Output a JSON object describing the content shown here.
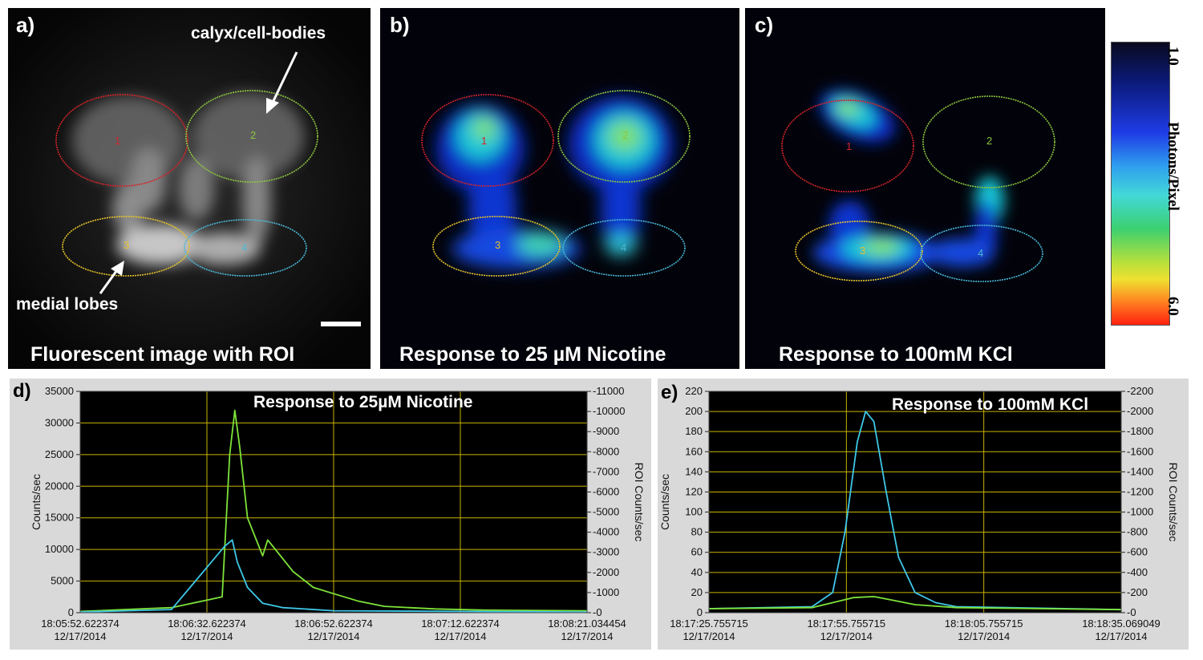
{
  "panels": {
    "a": {
      "label": "a)",
      "caption": "Fluorescent  image with ROI",
      "annotation_top": "calyx/cell-bodies",
      "annotation_bottom": "medial lobes",
      "roi": [
        "1",
        "2",
        "3",
        "4"
      ]
    },
    "b": {
      "label": "b)",
      "caption": "Response  to 25 µM Nicotine",
      "roi": [
        "1",
        "2",
        "3",
        "4"
      ]
    },
    "c": {
      "label": "c)",
      "caption": "Response  to 100mM KCl",
      "roi": [
        "1",
        "2",
        "3",
        "4"
      ]
    }
  },
  "colorbar": {
    "label": "Photons/Pixel",
    "top_tick": "1.0",
    "bottom_tick": "6.0"
  },
  "colors": {
    "roi1": "#d4242a",
    "roi2": "#8cc63f",
    "roi3": "#e6c22a",
    "roi4": "#4ab8d8",
    "trace_green": "#7ee33a",
    "trace_cyan": "#3fc8e8",
    "grid": "#c8b400"
  },
  "chart_data": [
    {
      "type": "line",
      "label": "d)",
      "title": "Response to 25µM Nicotine",
      "ylabel": "Counts/sec",
      "y2label": "ROI Counts/sec",
      "ylim": [
        0,
        35000
      ],
      "y2lim": [
        0,
        11000
      ],
      "yticks": [
        "0",
        "5000",
        "10000",
        "15000",
        "20000",
        "25000",
        "30000",
        "35000"
      ],
      "y2ticks": [
        "0",
        "1000",
        "2000",
        "3000",
        "4000",
        "5000",
        "6000",
        "7000",
        "8000",
        "9000",
        "10000",
        "11000"
      ],
      "xticks": [
        [
          "18:05:52.622374",
          "12/17/2014"
        ],
        [
          "18:06:32.622374",
          "12/17/2014"
        ],
        [
          "18:06:52.622374",
          "12/17/2014"
        ],
        [
          "18:07:12.622374",
          "12/17/2014"
        ],
        [
          "18:08:21.034454",
          "12/17/2014"
        ]
      ],
      "series": [
        {
          "color": "green",
          "x": [
            0,
            0.18,
            0.28,
            0.295,
            0.305,
            0.315,
            0.33,
            0.36,
            0.37,
            0.39,
            0.42,
            0.46,
            0.5,
            0.55,
            0.6,
            0.7,
            0.8,
            1.0
          ],
          "y": [
            200,
            800,
            2500,
            25000,
            32000,
            26000,
            15000,
            9000,
            11500,
            9500,
            6500,
            4000,
            3000,
            1800,
            1000,
            600,
            400,
            300
          ]
        },
        {
          "color": "cyan",
          "x": [
            0,
            0.18,
            0.285,
            0.3,
            0.31,
            0.33,
            0.36,
            0.4,
            0.5,
            1.0
          ],
          "y": [
            100,
            500,
            10500,
            11500,
            8000,
            4000,
            1500,
            800,
            300,
            100
          ]
        }
      ]
    },
    {
      "type": "line",
      "label": "e)",
      "title": "Response to 100mM KCl",
      "ylabel": "Counts/sec",
      "y2label": "ROI Counts/sec",
      "ylim": [
        0,
        220
      ],
      "y2lim": [
        0,
        2200
      ],
      "yticks": [
        "0",
        "20",
        "40",
        "60",
        "80",
        "100",
        "120",
        "140",
        "160",
        "180",
        "200",
        "220"
      ],
      "y2ticks": [
        "0",
        "200",
        "400",
        "600",
        "800",
        "1000",
        "1200",
        "1400",
        "1600",
        "1800",
        "2000",
        "2200"
      ],
      "xticks": [
        [
          "18:17:25.755715",
          "12/17/2014"
        ],
        [
          "18:17:55.755715",
          "12/17/2014"
        ],
        [
          "18:18:05.755715",
          "12/17/2014"
        ],
        [
          "18:18:35.069049",
          "12/17/2014"
        ]
      ],
      "series": [
        {
          "color": "cyan",
          "x": [
            0,
            0.25,
            0.3,
            0.33,
            0.36,
            0.38,
            0.4,
            0.43,
            0.46,
            0.5,
            0.55,
            0.6,
            1.0
          ],
          "y": [
            4,
            6,
            20,
            80,
            170,
            200,
            190,
            120,
            55,
            20,
            10,
            6,
            3
          ]
        },
        {
          "color": "green",
          "x": [
            0,
            0.25,
            0.3,
            0.35,
            0.4,
            0.45,
            0.5,
            0.6,
            1.0
          ],
          "y": [
            4,
            5,
            10,
            15,
            16,
            12,
            8,
            5,
            3
          ]
        }
      ]
    }
  ]
}
